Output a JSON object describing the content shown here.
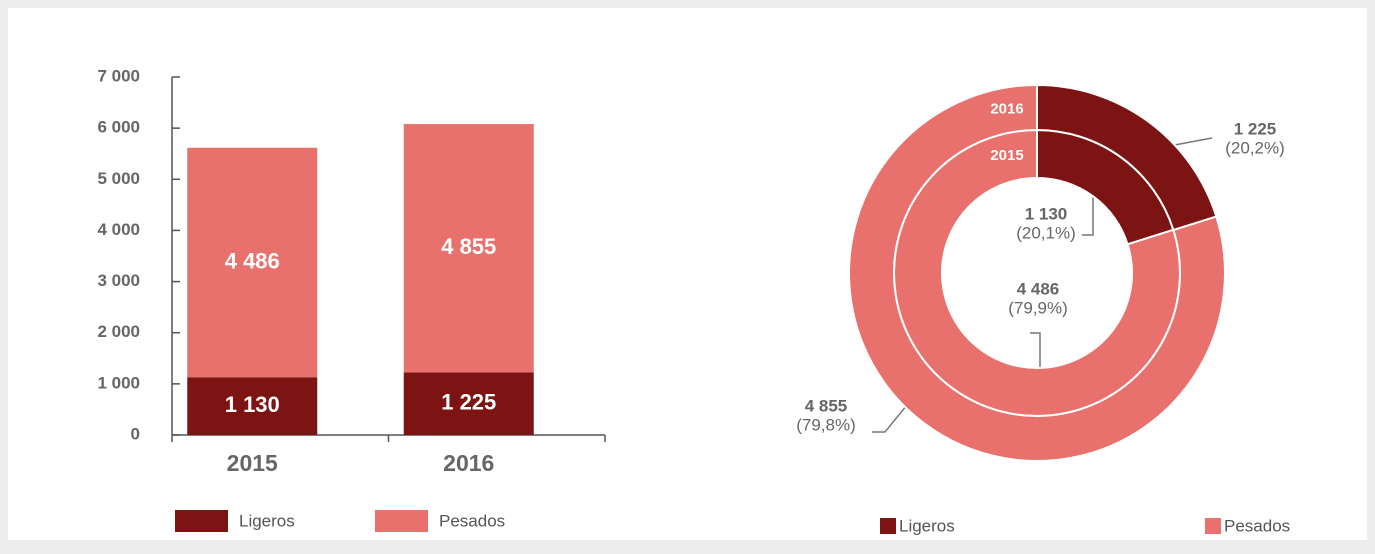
{
  "chart_data": [
    {
      "type": "bar",
      "stacked": true,
      "categories": [
        "2015",
        "2016"
      ],
      "series": [
        {
          "name": "Ligeros",
          "color": "#7b1413",
          "values": [
            1130,
            1225
          ],
          "value_labels": [
            "1 130",
            "1 225"
          ]
        },
        {
          "name": "Pesados",
          "color": "#e9716d",
          "values": [
            4486,
            4855
          ],
          "value_labels": [
            "4 486",
            "4 855"
          ]
        }
      ],
      "ylim": [
        0,
        7000
      ],
      "yticks": [
        0,
        {
          "value": 1000,
          "label": "1 000"
        },
        {
          "value": 2000,
          "label": "2 000"
        },
        {
          "value": 3000,
          "label": "3 000"
        },
        {
          "value": 4000,
          "label": "4 000"
        },
        {
          "value": 5000,
          "label": "5 000"
        },
        {
          "value": 6000,
          "label": "6 000"
        },
        {
          "value": 7000,
          "label": "7 000"
        }
      ]
    },
    {
      "type": "donut",
      "categories": [
        "Ligeros",
        "Pesados"
      ],
      "colors": [
        "#7b1413",
        "#e9716d"
      ],
      "rings": [
        {
          "name": "2015",
          "values": [
            1130,
            4486
          ],
          "value_labels": [
            "1 130",
            "4 486"
          ],
          "percent_labels": [
            "(20,1%)",
            "(79,9%)"
          ]
        },
        {
          "name": "2016",
          "values": [
            1225,
            4855
          ],
          "value_labels": [
            "1 225",
            "4 855"
          ],
          "percent_labels": [
            "(20,2%)",
            "(79,8%)"
          ]
        }
      ]
    }
  ]
}
